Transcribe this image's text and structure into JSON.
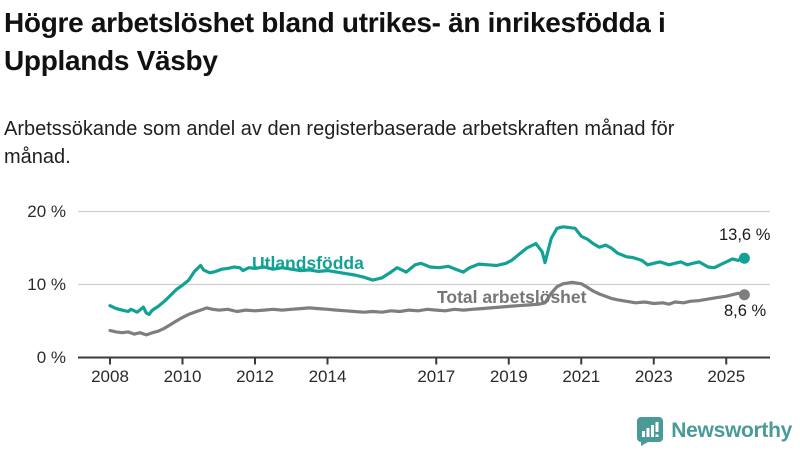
{
  "header": {
    "title": "Högre arbetslöshet bland utrikes- än inrikesfödda i Upplands Väsby",
    "subtitle": "Arbetssökande som andel av den registerbaserade arbetskraften månad för månad."
  },
  "chart_data": {
    "type": "line",
    "title": "Högre arbetslöshet bland utrikes- än inrikesfödda i Upplands Väsby",
    "subtitle": "Arbetssökande som andel av den registerbaserade arbetskraften månad för månad.",
    "unit": "%",
    "grid": "horizontal-only",
    "legend_position": "inline-labels-on-lines",
    "x_axis": {
      "range": [
        2007.9,
        2026.2
      ],
      "ticks": [
        2008,
        2010,
        2012,
        2014,
        2017,
        2019,
        2021,
        2023,
        2025
      ]
    },
    "y_axis": {
      "range": [
        0,
        20
      ],
      "ticks": [
        {
          "value": 0,
          "label": "0 %"
        },
        {
          "value": 10,
          "label": "10 %"
        },
        {
          "value": 20,
          "label": "20 %"
        }
      ]
    },
    "series": [
      {
        "name": "Utlandsfödda",
        "color": "#12A195",
        "end_value": 13.6,
        "end_label": "13,6 %",
        "points": [
          [
            2008.0,
            7.1
          ],
          [
            2008.17,
            6.7
          ],
          [
            2008.33,
            6.5
          ],
          [
            2008.5,
            6.3
          ],
          [
            2008.58,
            6.6
          ],
          [
            2008.75,
            6.2
          ],
          [
            2008.92,
            6.9
          ],
          [
            2009.0,
            6.1
          ],
          [
            2009.08,
            5.9
          ],
          [
            2009.17,
            6.5
          ],
          [
            2009.33,
            7.0
          ],
          [
            2009.5,
            7.7
          ],
          [
            2009.67,
            8.5
          ],
          [
            2009.83,
            9.3
          ],
          [
            2010.0,
            9.9
          ],
          [
            2010.17,
            10.6
          ],
          [
            2010.33,
            11.8
          ],
          [
            2010.5,
            12.6
          ],
          [
            2010.58,
            12.0
          ],
          [
            2010.75,
            11.6
          ],
          [
            2010.92,
            11.8
          ],
          [
            2011.08,
            12.1
          ],
          [
            2011.25,
            12.2
          ],
          [
            2011.42,
            12.4
          ],
          [
            2011.58,
            12.3
          ],
          [
            2011.67,
            11.9
          ],
          [
            2011.83,
            12.3
          ],
          [
            2012.0,
            12.2
          ],
          [
            2012.25,
            12.4
          ],
          [
            2012.5,
            12.1
          ],
          [
            2012.75,
            12.3
          ],
          [
            2013.0,
            12.1
          ],
          [
            2013.25,
            11.9
          ],
          [
            2013.5,
            12.0
          ],
          [
            2013.75,
            11.8
          ],
          [
            2014.0,
            11.9
          ],
          [
            2014.25,
            11.7
          ],
          [
            2014.5,
            11.5
          ],
          [
            2014.75,
            11.3
          ],
          [
            2015.0,
            11.0
          ],
          [
            2015.25,
            10.6
          ],
          [
            2015.5,
            10.9
          ],
          [
            2015.75,
            11.7
          ],
          [
            2015.92,
            12.3
          ],
          [
            2016.17,
            11.7
          ],
          [
            2016.42,
            12.7
          ],
          [
            2016.58,
            12.9
          ],
          [
            2016.83,
            12.4
          ],
          [
            2017.08,
            12.3
          ],
          [
            2017.33,
            12.5
          ],
          [
            2017.58,
            12.0
          ],
          [
            2017.75,
            11.7
          ],
          [
            2017.92,
            12.3
          ],
          [
            2018.17,
            12.8
          ],
          [
            2018.42,
            12.7
          ],
          [
            2018.67,
            12.6
          ],
          [
            2018.92,
            12.9
          ],
          [
            2019.08,
            13.3
          ],
          [
            2019.25,
            14.0
          ],
          [
            2019.5,
            15.0
          ],
          [
            2019.75,
            15.6
          ],
          [
            2019.92,
            14.5
          ],
          [
            2020.0,
            13.0
          ],
          [
            2020.17,
            16.3
          ],
          [
            2020.33,
            17.7
          ],
          [
            2020.5,
            17.9
          ],
          [
            2020.67,
            17.8
          ],
          [
            2020.83,
            17.7
          ],
          [
            2021.0,
            16.6
          ],
          [
            2021.17,
            16.2
          ],
          [
            2021.33,
            15.6
          ],
          [
            2021.5,
            15.1
          ],
          [
            2021.67,
            15.4
          ],
          [
            2021.83,
            15.0
          ],
          [
            2022.0,
            14.3
          ],
          [
            2022.25,
            13.8
          ],
          [
            2022.42,
            13.7
          ],
          [
            2022.67,
            13.3
          ],
          [
            2022.83,
            12.7
          ],
          [
            2023.0,
            12.9
          ],
          [
            2023.17,
            13.1
          ],
          [
            2023.42,
            12.7
          ],
          [
            2023.58,
            12.9
          ],
          [
            2023.75,
            13.1
          ],
          [
            2023.92,
            12.7
          ],
          [
            2024.08,
            12.9
          ],
          [
            2024.25,
            13.1
          ],
          [
            2024.5,
            12.4
          ],
          [
            2024.67,
            12.3
          ],
          [
            2024.83,
            12.7
          ],
          [
            2025.0,
            13.1
          ],
          [
            2025.17,
            13.5
          ],
          [
            2025.33,
            13.3
          ],
          [
            2025.42,
            13.6
          ],
          [
            2025.5,
            13.6
          ]
        ]
      },
      {
        "name": "Total arbetslöshet",
        "color": "#7E7E7E",
        "label_color": "#767676",
        "end_value": 8.6,
        "end_label": "8,6 %",
        "points": [
          [
            2008.0,
            3.7
          ],
          [
            2008.17,
            3.5
          ],
          [
            2008.33,
            3.4
          ],
          [
            2008.5,
            3.5
          ],
          [
            2008.67,
            3.2
          ],
          [
            2008.83,
            3.4
          ],
          [
            2009.0,
            3.1
          ],
          [
            2009.17,
            3.4
          ],
          [
            2009.33,
            3.6
          ],
          [
            2009.5,
            4.0
          ],
          [
            2009.67,
            4.5
          ],
          [
            2009.83,
            5.0
          ],
          [
            2010.0,
            5.5
          ],
          [
            2010.17,
            5.9
          ],
          [
            2010.33,
            6.2
          ],
          [
            2010.5,
            6.5
          ],
          [
            2010.67,
            6.8
          ],
          [
            2010.83,
            6.6
          ],
          [
            2011.0,
            6.5
          ],
          [
            2011.25,
            6.6
          ],
          [
            2011.5,
            6.3
          ],
          [
            2011.75,
            6.5
          ],
          [
            2012.0,
            6.4
          ],
          [
            2012.25,
            6.5
          ],
          [
            2012.5,
            6.6
          ],
          [
            2012.75,
            6.5
          ],
          [
            2013.0,
            6.6
          ],
          [
            2013.25,
            6.7
          ],
          [
            2013.5,
            6.8
          ],
          [
            2013.75,
            6.7
          ],
          [
            2014.0,
            6.6
          ],
          [
            2014.25,
            6.5
          ],
          [
            2014.5,
            6.4
          ],
          [
            2014.75,
            6.3
          ],
          [
            2015.0,
            6.2
          ],
          [
            2015.25,
            6.3
          ],
          [
            2015.5,
            6.2
          ],
          [
            2015.75,
            6.4
          ],
          [
            2016.0,
            6.3
          ],
          [
            2016.25,
            6.5
          ],
          [
            2016.5,
            6.4
          ],
          [
            2016.75,
            6.6
          ],
          [
            2017.0,
            6.5
          ],
          [
            2017.25,
            6.4
          ],
          [
            2017.5,
            6.6
          ],
          [
            2017.75,
            6.5
          ],
          [
            2018.0,
            6.6
          ],
          [
            2018.25,
            6.7
          ],
          [
            2018.5,
            6.8
          ],
          [
            2018.75,
            6.9
          ],
          [
            2019.0,
            7.0
          ],
          [
            2019.25,
            7.1
          ],
          [
            2019.58,
            7.2
          ],
          [
            2019.83,
            7.3
          ],
          [
            2020.0,
            7.5
          ],
          [
            2020.17,
            8.8
          ],
          [
            2020.33,
            9.7
          ],
          [
            2020.5,
            10.1
          ],
          [
            2020.75,
            10.3
          ],
          [
            2021.0,
            10.1
          ],
          [
            2021.17,
            9.6
          ],
          [
            2021.33,
            9.1
          ],
          [
            2021.5,
            8.7
          ],
          [
            2021.67,
            8.4
          ],
          [
            2021.83,
            8.1
          ],
          [
            2022.0,
            7.9
          ],
          [
            2022.25,
            7.7
          ],
          [
            2022.5,
            7.5
          ],
          [
            2022.75,
            7.6
          ],
          [
            2023.0,
            7.4
          ],
          [
            2023.25,
            7.5
          ],
          [
            2023.42,
            7.3
          ],
          [
            2023.58,
            7.6
          ],
          [
            2023.83,
            7.5
          ],
          [
            2024.0,
            7.7
          ],
          [
            2024.25,
            7.8
          ],
          [
            2024.5,
            8.0
          ],
          [
            2024.75,
            8.2
          ],
          [
            2025.0,
            8.4
          ],
          [
            2025.17,
            8.6
          ],
          [
            2025.33,
            8.8
          ],
          [
            2025.5,
            8.6
          ]
        ]
      }
    ]
  },
  "branding": {
    "logo_text": "Newsworthy",
    "color": "#4A9B98"
  },
  "colors": {
    "grid": "#cfcfcf",
    "axis": "#3a3a3a",
    "tick_text": "#2b2b2b"
  }
}
